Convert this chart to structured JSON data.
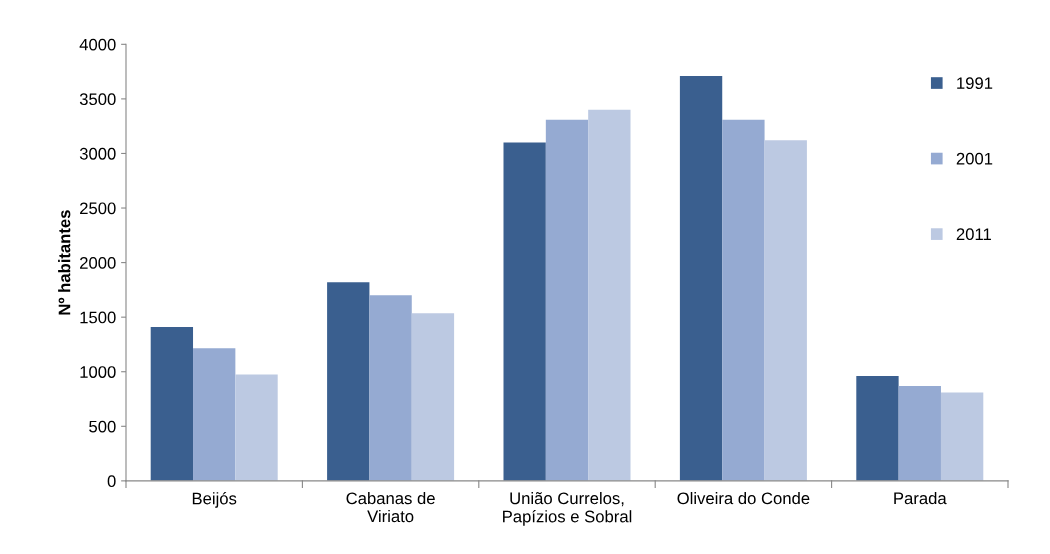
{
  "chart_data": {
    "type": "bar",
    "ylabel": "Nº habitantes",
    "categories": [
      "Beijós",
      "Cabanas de\nViriato",
      "União Currelos,\nPapízios e Sobral",
      "Oliveira do Conde",
      "Parada"
    ],
    "series": [
      {
        "name": "1991",
        "color": "#3a5f8f",
        "values": [
          1410,
          1820,
          3100,
          3710,
          960
        ]
      },
      {
        "name": "2001",
        "color": "#95aad2",
        "values": [
          1215,
          1700,
          3310,
          3310,
          870
        ]
      },
      {
        "name": "2011",
        "color": "#bcc9e2",
        "values": [
          975,
          1535,
          3400,
          3120,
          810
        ]
      }
    ],
    "ylim": [
      0,
      4000
    ],
    "yticks": [
      0,
      500,
      1000,
      1500,
      2000,
      2500,
      3000,
      3500,
      4000
    ],
    "grid": false,
    "legend": "top right"
  }
}
